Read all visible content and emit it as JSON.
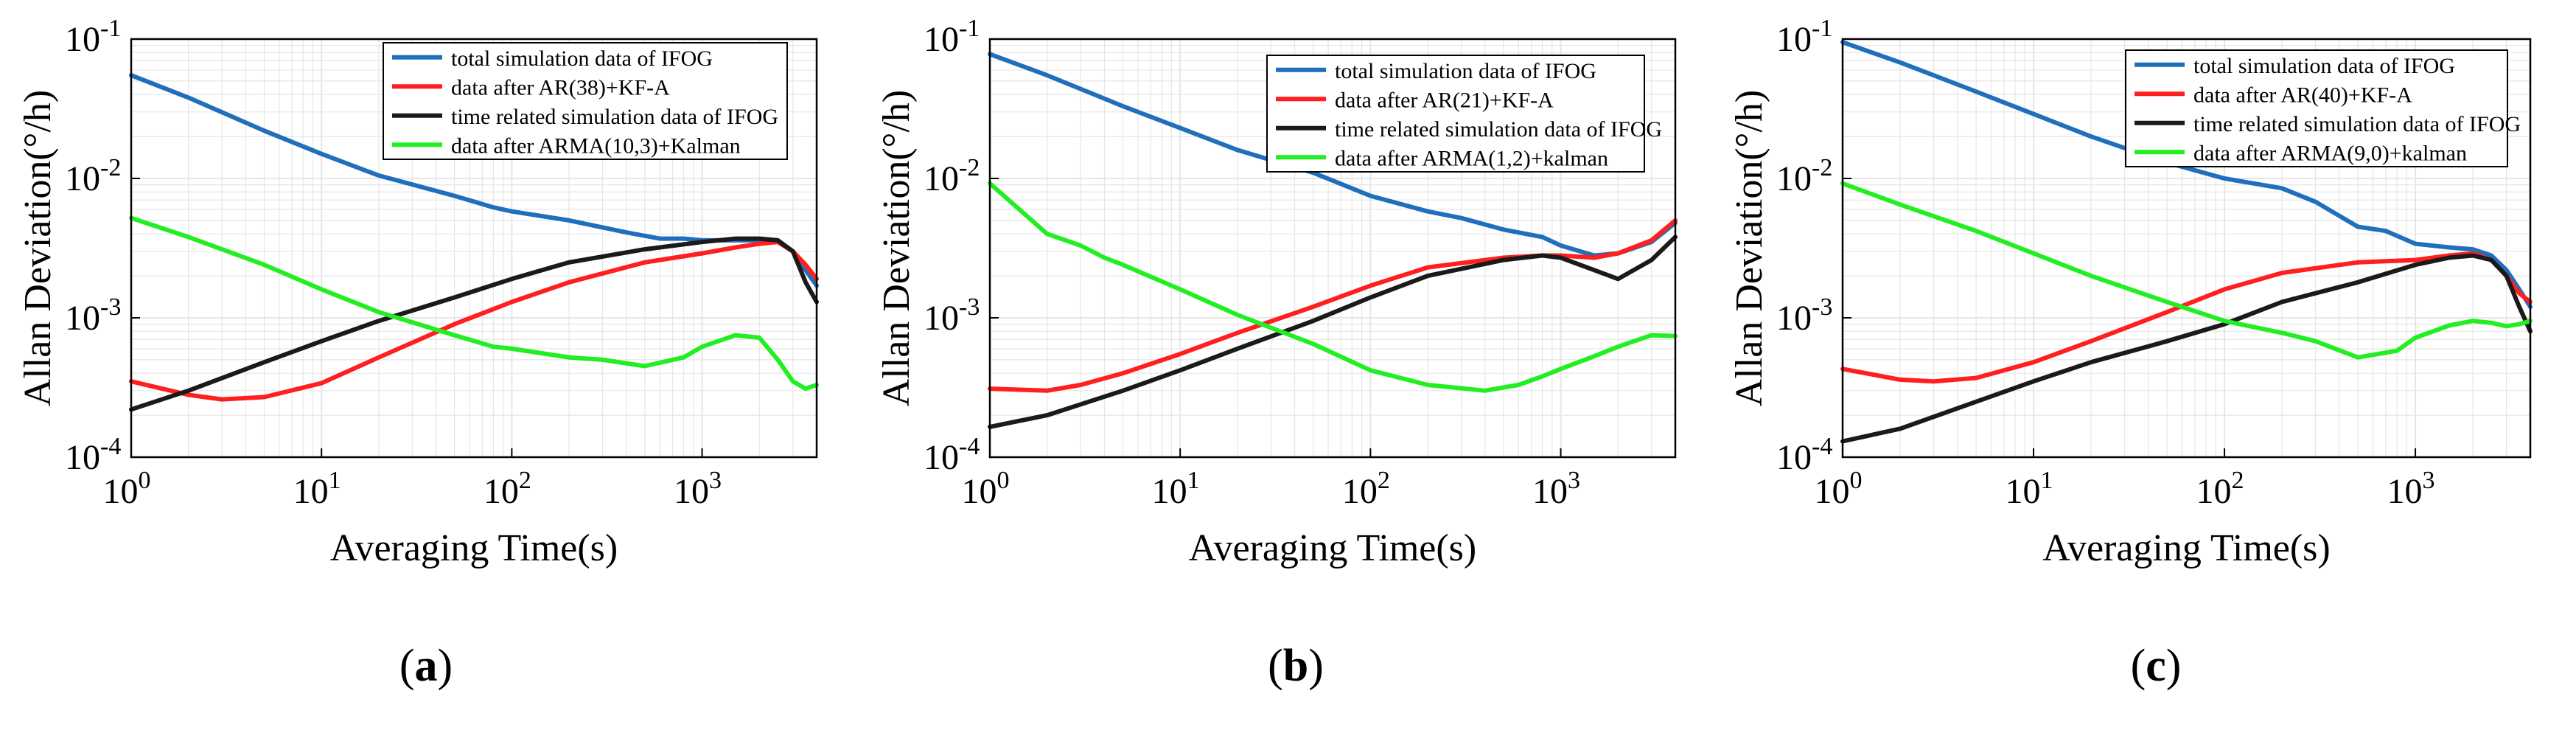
{
  "figure": {
    "colors": {
      "total": "#1f6fbd",
      "ar": "#ff1f1f",
      "time": "#1a1a1a",
      "arma": "#22ee22",
      "grid": "#e6e6e6",
      "axis": "#000000"
    }
  },
  "chart_data": [
    {
      "type": "line",
      "panel_label": "a",
      "xlabel": "Averaging Time(s)",
      "ylabel": "Allan Deviation(°/h)",
      "xscale": "log",
      "yscale": "log",
      "xlim": [
        1,
        4000
      ],
      "ylim": [
        0.0001,
        0.1
      ],
      "x_ticks": [
        "10^0",
        "10^1",
        "10^2",
        "10^3"
      ],
      "y_ticks": [
        "10^-4",
        "10^-3",
        "10^-2",
        "10^-1"
      ],
      "grid": true,
      "legend_position": "top-right",
      "series": [
        {
          "name": "total simulation data of IFOG",
          "color_key": "total",
          "x": [
            1,
            2,
            5,
            10,
            20,
            50,
            80,
            100,
            200,
            400,
            600,
            800,
            1000,
            1500,
            2000,
            2500,
            3000,
            3500,
            4000
          ],
          "y": [
            0.055,
            0.038,
            0.022,
            0.015,
            0.0105,
            0.0075,
            0.0062,
            0.0058,
            0.005,
            0.0041,
            0.0037,
            0.0037,
            0.0036,
            0.0036,
            0.0036,
            0.0035,
            0.003,
            0.0022,
            0.0017
          ]
        },
        {
          "name": "data after AR(38)+KF-A",
          "color_key": "ar",
          "x": [
            1,
            2,
            3,
            5,
            10,
            20,
            50,
            100,
            200,
            500,
            1000,
            1500,
            2000,
            2500,
            3000,
            3500,
            4000
          ],
          "y": [
            0.00035,
            0.00028,
            0.00026,
            0.00027,
            0.00034,
            0.00052,
            0.0009,
            0.0013,
            0.0018,
            0.0025,
            0.0029,
            0.0032,
            0.0034,
            0.0035,
            0.003,
            0.0024,
            0.0019
          ]
        },
        {
          "name": "time related simulation data of IFOG",
          "color_key": "time",
          "x": [
            1,
            2,
            5,
            10,
            20,
            50,
            100,
            200,
            500,
            1000,
            1500,
            2000,
            2500,
            3000,
            3500,
            4000
          ],
          "y": [
            0.00022,
            0.0003,
            0.00048,
            0.00068,
            0.00095,
            0.0014,
            0.0019,
            0.0025,
            0.0031,
            0.0035,
            0.0037,
            0.0037,
            0.0036,
            0.003,
            0.0018,
            0.0013
          ]
        },
        {
          "name": "data after ARMA(10,3)+Kalman",
          "color_key": "arma",
          "x": [
            1,
            2,
            5,
            10,
            20,
            50,
            80,
            100,
            200,
            300,
            500,
            800,
            1000,
            1500,
            2000,
            2500,
            3000,
            3500,
            4000
          ],
          "y": [
            0.0052,
            0.0038,
            0.0024,
            0.0016,
            0.0011,
            0.00075,
            0.00062,
            0.0006,
            0.00052,
            0.0005,
            0.00045,
            0.00052,
            0.00062,
            0.00075,
            0.00072,
            0.0005,
            0.00035,
            0.00031,
            0.00033
          ]
        }
      ]
    },
    {
      "type": "line",
      "panel_label": "b",
      "xlabel": "Averaging Time(s)",
      "ylabel": "Allan Deviation(°/h)",
      "xscale": "log",
      "yscale": "log",
      "xlim": [
        1,
        4000
      ],
      "ylim": [
        0.0001,
        0.1
      ],
      "x_ticks": [
        "10^0",
        "10^1",
        "10^2",
        "10^3"
      ],
      "y_ticks": [
        "10^-4",
        "10^-3",
        "10^-2",
        "10^-1"
      ],
      "grid": true,
      "legend_position": "top-right",
      "series": [
        {
          "name": "total simulation data of IFOG",
          "color_key": "total",
          "x": [
            1,
            2,
            5,
            10,
            20,
            50,
            100,
            200,
            300,
            500,
            800,
            1000,
            1500,
            2000,
            3000,
            4000
          ],
          "y": [
            0.078,
            0.055,
            0.033,
            0.023,
            0.016,
            0.011,
            0.0075,
            0.0058,
            0.0052,
            0.0043,
            0.0038,
            0.0033,
            0.0028,
            0.0029,
            0.0035,
            0.0048
          ]
        },
        {
          "name": "data after AR(21)+KF-A",
          "color_key": "ar",
          "x": [
            1,
            2,
            3,
            5,
            10,
            20,
            50,
            100,
            200,
            500,
            800,
            1000,
            1500,
            2000,
            3000,
            4000
          ],
          "y": [
            0.00031,
            0.0003,
            0.00033,
            0.0004,
            0.00055,
            0.00078,
            0.0012,
            0.0017,
            0.0023,
            0.0027,
            0.0028,
            0.0028,
            0.0027,
            0.0029,
            0.0036,
            0.005
          ]
        },
        {
          "name": "time related simulation data of IFOG",
          "color_key": "time",
          "x": [
            1,
            2,
            5,
            10,
            20,
            50,
            100,
            200,
            500,
            800,
            1000,
            1500,
            2000,
            3000,
            4000
          ],
          "y": [
            0.000165,
            0.0002,
            0.0003,
            0.00042,
            0.0006,
            0.00095,
            0.0014,
            0.002,
            0.0026,
            0.0028,
            0.0027,
            0.0022,
            0.0019,
            0.0026,
            0.0038
          ]
        },
        {
          "name": "data after ARMA(1,2)+kalman",
          "color_key": "arma",
          "x": [
            1,
            2,
            3,
            4,
            5,
            10,
            20,
            50,
            100,
            200,
            400,
            600,
            800,
            1000,
            1500,
            2000,
            3000,
            4000
          ],
          "y": [
            0.0092,
            0.004,
            0.0033,
            0.0027,
            0.0024,
            0.0016,
            0.00105,
            0.00065,
            0.00042,
            0.00033,
            0.0003,
            0.00033,
            0.00038,
            0.00043,
            0.00053,
            0.00062,
            0.00075,
            0.00074
          ]
        }
      ]
    },
    {
      "type": "line",
      "panel_label": "c",
      "xlabel": "Averaging Time(s)",
      "ylabel": "Allan Deviation(°/h)",
      "xscale": "log",
      "yscale": "log",
      "xlim": [
        1,
        4000
      ],
      "ylim": [
        0.0001,
        0.1
      ],
      "x_ticks": [
        "10^0",
        "10^1",
        "10^2",
        "10^3"
      ],
      "y_ticks": [
        "10^-4",
        "10^-3",
        "10^-2",
        "10^-1"
      ],
      "grid": true,
      "legend_position": "top-right",
      "series": [
        {
          "name": "total simulation data of IFOG",
          "color_key": "total",
          "x": [
            1,
            2,
            5,
            10,
            20,
            50,
            100,
            200,
            300,
            500,
            700,
            1000,
            1500,
            2000,
            2500,
            3000,
            3500,
            4000
          ],
          "y": [
            0.095,
            0.068,
            0.042,
            0.029,
            0.02,
            0.013,
            0.01,
            0.0085,
            0.0068,
            0.0045,
            0.0042,
            0.0034,
            0.0032,
            0.0031,
            0.0028,
            0.0022,
            0.0016,
            0.0012
          ]
        },
        {
          "name": "data after AR(40)+KF-A",
          "color_key": "ar",
          "x": [
            1,
            2,
            3,
            5,
            10,
            20,
            50,
            100,
            200,
            500,
            1000,
            1500,
            2000,
            2500,
            3000,
            3500,
            4000
          ],
          "y": [
            0.00043,
            0.00036,
            0.00035,
            0.00037,
            0.00048,
            0.00068,
            0.0011,
            0.0016,
            0.0021,
            0.0025,
            0.0026,
            0.0028,
            0.0029,
            0.0026,
            0.002,
            0.0015,
            0.0013
          ]
        },
        {
          "name": "time related simulation data of IFOG",
          "color_key": "time",
          "x": [
            1,
            2,
            5,
            10,
            20,
            50,
            100,
            200,
            500,
            1000,
            1500,
            2000,
            2500,
            3000,
            3500,
            4000
          ],
          "y": [
            0.00013,
            0.00016,
            0.00025,
            0.00035,
            0.00048,
            0.00068,
            0.0009,
            0.0013,
            0.0018,
            0.0024,
            0.0027,
            0.0028,
            0.0026,
            0.002,
            0.0012,
            0.0008
          ]
        },
        {
          "name": "data after ARMA(9,0)+kalman",
          "color_key": "arma",
          "x": [
            1,
            2,
            5,
            10,
            20,
            50,
            100,
            200,
            300,
            500,
            800,
            1000,
            1500,
            2000,
            2500,
            3000,
            3500,
            4000
          ],
          "y": [
            0.0092,
            0.0065,
            0.0042,
            0.0029,
            0.002,
            0.0013,
            0.00095,
            0.00078,
            0.00068,
            0.00052,
            0.00058,
            0.00072,
            0.00088,
            0.00095,
            0.00092,
            0.00087,
            0.0009,
            0.00095
          ]
        }
      ]
    }
  ]
}
